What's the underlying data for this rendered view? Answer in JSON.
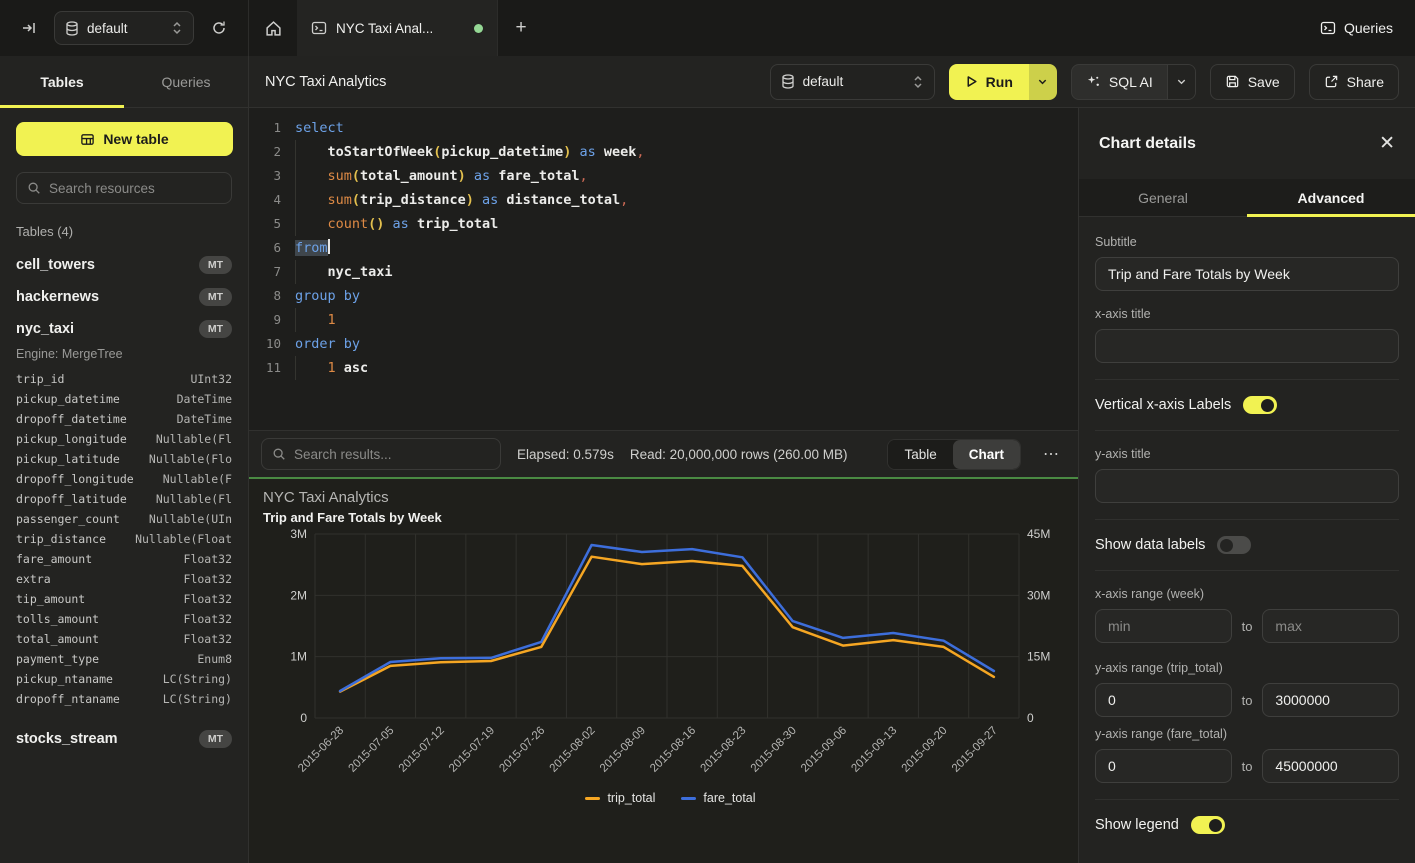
{
  "topbar": {
    "database_selector": "default",
    "tab_title": "NYC Taxi Anal...",
    "queries_label": "Queries"
  },
  "sidebar": {
    "tabs": {
      "tables": "Tables",
      "queries": "Queries"
    },
    "new_table_label": "New table",
    "search_placeholder": "Search resources",
    "section_label": "Tables (4)",
    "badge": "MT",
    "tables": [
      {
        "name": "cell_towers"
      },
      {
        "name": "hackernews"
      },
      {
        "name": "nyc_taxi"
      },
      {
        "name": "stocks_stream"
      }
    ],
    "nyc_taxi_details": {
      "engine": "Engine: MergeTree",
      "columns": [
        {
          "name": "trip_id",
          "type": "UInt32"
        },
        {
          "name": "pickup_datetime",
          "type": "DateTime"
        },
        {
          "name": "dropoff_datetime",
          "type": "DateTime"
        },
        {
          "name": "pickup_longitude",
          "type": "Nullable(Fl"
        },
        {
          "name": "pickup_latitude",
          "type": "Nullable(Flo"
        },
        {
          "name": "dropoff_longitude",
          "type": "Nullable(F"
        },
        {
          "name": "dropoff_latitude",
          "type": "Nullable(Fl"
        },
        {
          "name": "passenger_count",
          "type": "Nullable(UIn"
        },
        {
          "name": "trip_distance",
          "type": "Nullable(Float"
        },
        {
          "name": "fare_amount",
          "type": "Float32"
        },
        {
          "name": "extra",
          "type": "Float32"
        },
        {
          "name": "tip_amount",
          "type": "Float32"
        },
        {
          "name": "tolls_amount",
          "type": "Float32"
        },
        {
          "name": "total_amount",
          "type": "Float32"
        },
        {
          "name": "payment_type",
          "type": "Enum8"
        },
        {
          "name": "pickup_ntaname",
          "type": "LC(String)"
        },
        {
          "name": "dropoff_ntaname",
          "type": "LC(String)"
        }
      ]
    }
  },
  "toolbar": {
    "title": "NYC Taxi Analytics",
    "database_selector": "default",
    "run_label": "Run",
    "sql_ai_label": "SQL AI",
    "save_label": "Save",
    "share_label": "Share"
  },
  "editor": {
    "lines": [
      {
        "num": 1,
        "guide": false,
        "tokens": [
          [
            "kw",
            "select"
          ]
        ]
      },
      {
        "num": 2,
        "guide": true,
        "tokens": [
          [
            "ind",
            "    "
          ],
          [
            "id",
            "toStartOfWeek"
          ],
          [
            "par",
            "("
          ],
          [
            "id",
            "pickup_datetime"
          ],
          [
            "par",
            ")"
          ],
          [
            "kw",
            " as "
          ],
          [
            "id",
            "week"
          ],
          [
            "pun",
            ","
          ]
        ]
      },
      {
        "num": 3,
        "guide": true,
        "tokens": [
          [
            "ind",
            "    "
          ],
          [
            "fn",
            "sum"
          ],
          [
            "par",
            "("
          ],
          [
            "id",
            "total_amount"
          ],
          [
            "par",
            ")"
          ],
          [
            "kw",
            " as "
          ],
          [
            "id",
            "fare_total"
          ],
          [
            "pun",
            ","
          ]
        ]
      },
      {
        "num": 4,
        "guide": true,
        "tokens": [
          [
            "ind",
            "    "
          ],
          [
            "fn",
            "sum"
          ],
          [
            "par",
            "("
          ],
          [
            "id",
            "trip_distance"
          ],
          [
            "par",
            ")"
          ],
          [
            "kw",
            " as "
          ],
          [
            "id",
            "distance_total"
          ],
          [
            "pun",
            ","
          ]
        ]
      },
      {
        "num": 5,
        "guide": true,
        "tokens": [
          [
            "ind",
            "    "
          ],
          [
            "fn",
            "count"
          ],
          [
            "par",
            "()"
          ],
          [
            "kw",
            " as "
          ],
          [
            "id",
            "trip_total"
          ]
        ]
      },
      {
        "num": 6,
        "guide": false,
        "tokens": [
          [
            "kwsel",
            "from"
          ]
        ]
      },
      {
        "num": 7,
        "guide": true,
        "tokens": [
          [
            "ind",
            "    "
          ],
          [
            "id",
            "nyc_taxi"
          ]
        ]
      },
      {
        "num": 8,
        "guide": false,
        "tokens": [
          [
            "kw",
            "group by"
          ]
        ]
      },
      {
        "num": 9,
        "guide": true,
        "tokens": [
          [
            "ind",
            "    "
          ],
          [
            "num",
            "1"
          ]
        ]
      },
      {
        "num": 10,
        "guide": false,
        "tokens": [
          [
            "kw",
            "order by"
          ]
        ]
      },
      {
        "num": 11,
        "guide": true,
        "tokens": [
          [
            "ind",
            "    "
          ],
          [
            "num",
            "1"
          ],
          [
            "id",
            " asc"
          ]
        ]
      }
    ]
  },
  "results_bar": {
    "search_placeholder": "Search results...",
    "elapsed": "Elapsed: 0.579s",
    "read": "Read: 20,000,000 rows (260.00 MB)",
    "table_label": "Table",
    "chart_label": "Chart"
  },
  "chart_data": {
    "type": "line",
    "title": "NYC Taxi Analytics",
    "subtitle": "Trip and Fare Totals by Week",
    "categories": [
      "2015-06-28",
      "2015-07-05",
      "2015-07-12",
      "2015-07-19",
      "2015-07-26",
      "2015-08-02",
      "2015-08-09",
      "2015-08-16",
      "2015-08-23",
      "2015-08-30",
      "2015-09-06",
      "2015-09-13",
      "2015-09-20",
      "2015-09-27"
    ],
    "series": [
      {
        "name": "trip_total",
        "color": "#f5a623",
        "axis": "left",
        "values": [
          430000,
          850000,
          910000,
          930000,
          1160000,
          2630000,
          2510000,
          2560000,
          2480000,
          1480000,
          1180000,
          1270000,
          1160000,
          670000
        ]
      },
      {
        "name": "fare_total",
        "color": "#3d6edb",
        "axis": "right",
        "values": [
          6600000,
          13700000,
          14600000,
          14700000,
          18600000,
          42300000,
          40600000,
          41300000,
          39300000,
          23700000,
          19600000,
          20800000,
          18900000,
          11500000
        ]
      }
    ],
    "y_left": {
      "lim": [
        0,
        3000000
      ],
      "ticks": [
        "0",
        "1M",
        "2M",
        "3M"
      ]
    },
    "y_right": {
      "lim": [
        0,
        45000000
      ],
      "ticks": [
        "0",
        "15M",
        "30M",
        "45M"
      ]
    },
    "grid": true,
    "legend_position": "bottom",
    "x_labels_rotated": true
  },
  "chart_panel": {
    "title": "Chart details",
    "tabs": {
      "general": "General",
      "advanced": "Advanced"
    },
    "fields": {
      "subtitle": {
        "label": "Subtitle",
        "value": "Trip and Fare Totals by Week"
      },
      "x_axis_title": {
        "label": "x-axis title",
        "value": ""
      },
      "vertical_x_labels": {
        "label": "Vertical x-axis Labels",
        "on": true
      },
      "y_axis_title": {
        "label": "y-axis title",
        "value": ""
      },
      "show_data_labels": {
        "label": "Show data labels",
        "on": false
      },
      "x_axis_range": {
        "label": "x-axis range (week)",
        "min_placeholder": "min",
        "max_placeholder": "max",
        "to_label": "to"
      },
      "y_axis_range_trip": {
        "label": "y-axis range (trip_total)",
        "min": "0",
        "max": "3000000",
        "to_label": "to"
      },
      "y_axis_range_fare": {
        "label": "y-axis range (fare_total)",
        "min": "0",
        "max": "45000000",
        "to_label": "to"
      },
      "show_legend": {
        "label": "Show legend",
        "on": true
      }
    }
  },
  "colors": {
    "accent_yellow": "#f1f252",
    "green_accent": "#4a8a43",
    "series_orange": "#f5a623",
    "series_blue": "#3d6edb",
    "grid_line": "#31312d"
  }
}
